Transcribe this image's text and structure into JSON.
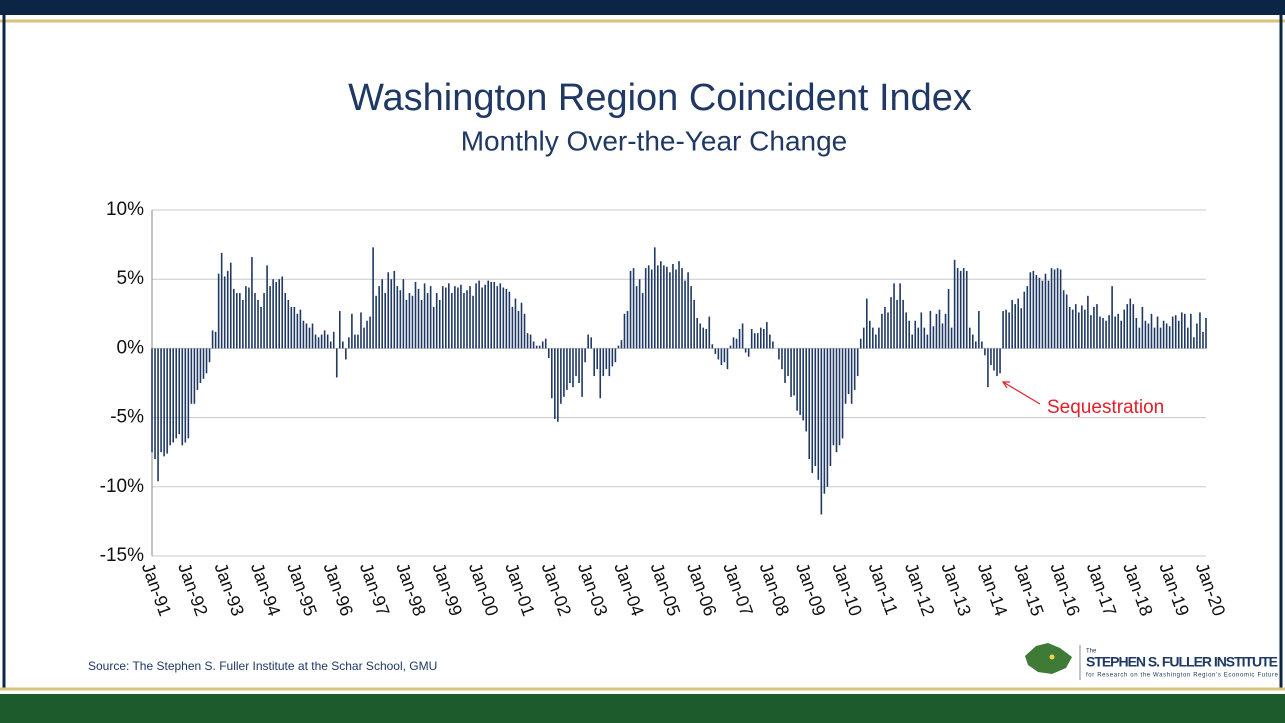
{
  "chart_data": {
    "type": "bar",
    "title": "Washington Region Coincident Index",
    "subtitle": "Monthly Over-the-Year Change",
    "source": "Source: The Stephen S. Fuller Institute at the Schar School, GMU",
    "annotation": "Sequestration",
    "logo": {
      "small": "The",
      "name": "STEPHEN S. FULLER INSTITUTE",
      "tagline": "for Research on the Washington Region's Economic Future"
    },
    "color": "#1f3864",
    "grid": true,
    "ylim": [
      -15,
      10
    ],
    "yticks": [
      {
        "value": -15,
        "label": "-15%"
      },
      {
        "value": -10,
        "label": "-10%"
      },
      {
        "value": -5,
        "label": "-5%"
      },
      {
        "value": 0,
        "label": "0%"
      },
      {
        "value": 5,
        "label": "5%"
      },
      {
        "value": 10,
        "label": "10%"
      }
    ],
    "categories": [
      "Jan-91",
      null,
      null,
      null,
      null,
      null,
      null,
      null,
      null,
      null,
      null,
      null,
      "Jan-92",
      null,
      null,
      null,
      null,
      null,
      null,
      null,
      null,
      null,
      null,
      null,
      "Jan-93",
      null,
      null,
      null,
      null,
      null,
      null,
      null,
      null,
      null,
      null,
      null,
      "Jan-94",
      null,
      null,
      null,
      null,
      null,
      null,
      null,
      null,
      null,
      null,
      null,
      "Jan-95",
      null,
      null,
      null,
      null,
      null,
      null,
      null,
      null,
      null,
      null,
      null,
      "Jan-96",
      null,
      null,
      null,
      null,
      null,
      null,
      null,
      null,
      null,
      null,
      null,
      "Jan-97",
      null,
      null,
      null,
      null,
      null,
      null,
      null,
      null,
      null,
      null,
      null,
      "Jan-98",
      null,
      null,
      null,
      null,
      null,
      null,
      null,
      null,
      null,
      null,
      null,
      "Jan-99",
      null,
      null,
      null,
      null,
      null,
      null,
      null,
      null,
      null,
      null,
      null,
      "Jan-00",
      null,
      null,
      null,
      null,
      null,
      null,
      null,
      null,
      null,
      null,
      null,
      "Jan-01",
      null,
      null,
      null,
      null,
      null,
      null,
      null,
      null,
      null,
      null,
      null,
      "Jan-02",
      null,
      null,
      null,
      null,
      null,
      null,
      null,
      null,
      null,
      null,
      null,
      "Jan-03",
      null,
      null,
      null,
      null,
      null,
      null,
      null,
      null,
      null,
      null,
      null,
      "Jan-04",
      null,
      null,
      null,
      null,
      null,
      null,
      null,
      null,
      null,
      null,
      null,
      "Jan-05",
      null,
      null,
      null,
      null,
      null,
      null,
      null,
      null,
      null,
      null,
      null,
      "Jan-06",
      null,
      null,
      null,
      null,
      null,
      null,
      null,
      null,
      null,
      null,
      null,
      "Jan-07",
      null,
      null,
      null,
      null,
      null,
      null,
      null,
      null,
      null,
      null,
      null,
      "Jan-08",
      null,
      null,
      null,
      null,
      null,
      null,
      null,
      null,
      null,
      null,
      null,
      "Jan-09",
      null,
      null,
      null,
      null,
      null,
      null,
      null,
      null,
      null,
      null,
      null,
      "Jan-10",
      null,
      null,
      null,
      null,
      null,
      null,
      null,
      null,
      null,
      null,
      null,
      "Jan-11",
      null,
      null,
      null,
      null,
      null,
      null,
      null,
      null,
      null,
      null,
      null,
      "Jan-12",
      null,
      null,
      null,
      null,
      null,
      null,
      null,
      null,
      null,
      null,
      null,
      "Jan-13",
      null,
      null,
      null,
      null,
      null,
      null,
      null,
      null,
      null,
      null,
      null,
      "Jan-14",
      null,
      null,
      null,
      null,
      null,
      null,
      null,
      null,
      null,
      null,
      null,
      "Jan-15",
      null,
      null,
      null,
      null,
      null,
      null,
      null,
      null,
      null,
      null,
      null,
      "Jan-16",
      null,
      null,
      null,
      null,
      null,
      null,
      null,
      null,
      null,
      null,
      null,
      "Jan-17",
      null,
      null,
      null,
      null,
      null,
      null,
      null,
      null,
      null,
      null,
      null,
      "Jan-18",
      null,
      null,
      null,
      null,
      null,
      null,
      null,
      null,
      null,
      null,
      null,
      "Jan-19",
      null,
      null,
      null,
      null,
      null,
      null,
      null,
      null,
      null,
      null,
      null,
      "Jan-20"
    ],
    "values": [
      -7.5,
      -8,
      -9.6,
      -7.5,
      -7.8,
      -7.6,
      -7,
      -6.8,
      -6.5,
      -6.2,
      -7,
      -6.8,
      -6.5,
      -4,
      -4,
      -3,
      -2.5,
      -2.2,
      -1.8,
      -1,
      1.3,
      1.2,
      5.4,
      6.9,
      5.2,
      5.6,
      6.2,
      4.3,
      4,
      4,
      3.5,
      4.5,
      4.4,
      6.6,
      4,
      3.5,
      3,
      4,
      6,
      4.5,
      5,
      4.8,
      5,
      5.2,
      4,
      3.5,
      3,
      3,
      2.5,
      2.8,
      2,
      1.8,
      1.5,
      1.8,
      1,
      0.8,
      1,
      1.3,
      1,
      0.5,
      1.2,
      -2.1,
      2.7,
      0.5,
      -0.8,
      0.8,
      2.5,
      1,
      1,
      2.6,
      1.5,
      2,
      2.3,
      7.3,
      3.8,
      4.5,
      5,
      4,
      5.5,
      5,
      5.6,
      4.5,
      4.2,
      5,
      3.5,
      4,
      3.8,
      4.8,
      4.3,
      3.5,
      4.7,
      4,
      4.5,
      3,
      4,
      3.5,
      4.5,
      4.4,
      4.7,
      4,
      4.5,
      4.4,
      4.6,
      4,
      4.2,
      4.5,
      3.8,
      4.7,
      4.9,
      4.4,
      4.6,
      4.9,
      4.8,
      4.8,
      4.5,
      4.7,
      4.4,
      4.3,
      4.1,
      3,
      3.6,
      2.7,
      3.3,
      2.5,
      1.1,
      1,
      0.5,
      0.2,
      0.2,
      0.5,
      0.7,
      -0.7,
      -3.6,
      -5.1,
      -5.3,
      -4,
      -3.5,
      -3,
      -2.5,
      -2.8,
      -2,
      -2.5,
      -3.5,
      -1,
      1,
      0.8,
      -2,
      -1.5,
      -3.6,
      -2,
      -1.5,
      -2,
      -1.3,
      -1,
      0.2,
      0.6,
      2.5,
      2.7,
      5.6,
      5.8,
      4.5,
      5,
      4,
      5.8,
      6,
      5.7,
      7.3,
      6,
      6.3,
      6,
      5.9,
      5.5,
      6.1,
      5.7,
      6.3,
      5.8,
      4.9,
      5.5,
      4.5,
      3.5,
      2.2,
      1.8,
      1.5,
      1.4,
      2.3,
      0.3,
      -0.4,
      -0.8,
      -1.2,
      -1,
      -1.5,
      0.2,
      0.8,
      0.7,
      1.4,
      1.8,
      -0.3,
      -0.6,
      1.4,
      1.1,
      1.1,
      1.5,
      1.4,
      1.9,
      1,
      0.5,
      0,
      -0.8,
      -1.5,
      -2.5,
      -2,
      -3.5,
      -3.4,
      -4.5,
      -4.8,
      -5.2,
      -6,
      -8,
      -9,
      -8.5,
      -9.5,
      -12,
      -10.5,
      -10,
      -8.5,
      -7,
      -7.5,
      -7,
      -6.5,
      -4,
      -3.3,
      -4,
      -3,
      -2,
      0.7,
      1.5,
      3.6,
      2,
      1.5,
      1,
      1.5,
      2.5,
      3,
      2.6,
      3.7,
      4.7,
      3.5,
      4.7,
      3.5,
      2.6,
      2,
      1,
      2,
      1.5,
      2.6,
      1.5,
      1,
      2.7,
      1.6,
      2.5,
      2.8,
      1.8,
      2.5,
      4.3,
      1.5,
      6.4,
      5.8,
      5.6,
      5.8,
      5.6,
      1.5,
      1,
      0.5,
      2.7,
      0.5,
      -0.5,
      -2.8,
      -1.2,
      -1.6,
      -2,
      -1.8,
      2.7,
      2.8,
      2.6,
      3.5,
      3.2,
      3.6,
      2.9,
      4.1,
      4.5,
      5.5,
      5.6,
      5.3,
      5.1,
      4.9,
      5.4,
      4.9,
      5.8,
      5.7,
      5.8,
      5.7,
      4.2,
      3.9,
      3,
      2.8,
      3.2,
      2.6,
      3.1,
      2.8,
      3.8,
      2.4,
      3,
      3.2,
      2.3,
      2.2,
      2,
      2.4,
      4.5,
      2.3,
      2.5,
      2,
      2.8,
      3.2,
      3.6,
      3.2,
      2.2,
      1.5,
      3,
      2,
      1.8,
      2.5,
      1.5,
      2.3,
      1.5,
      2,
      1.8,
      1.6,
      2.3,
      2.4,
      2,
      2.6,
      2.5,
      1.5,
      2.5,
      0.8,
      1.8,
      2.6,
      1.2,
      2.2
    ]
  }
}
